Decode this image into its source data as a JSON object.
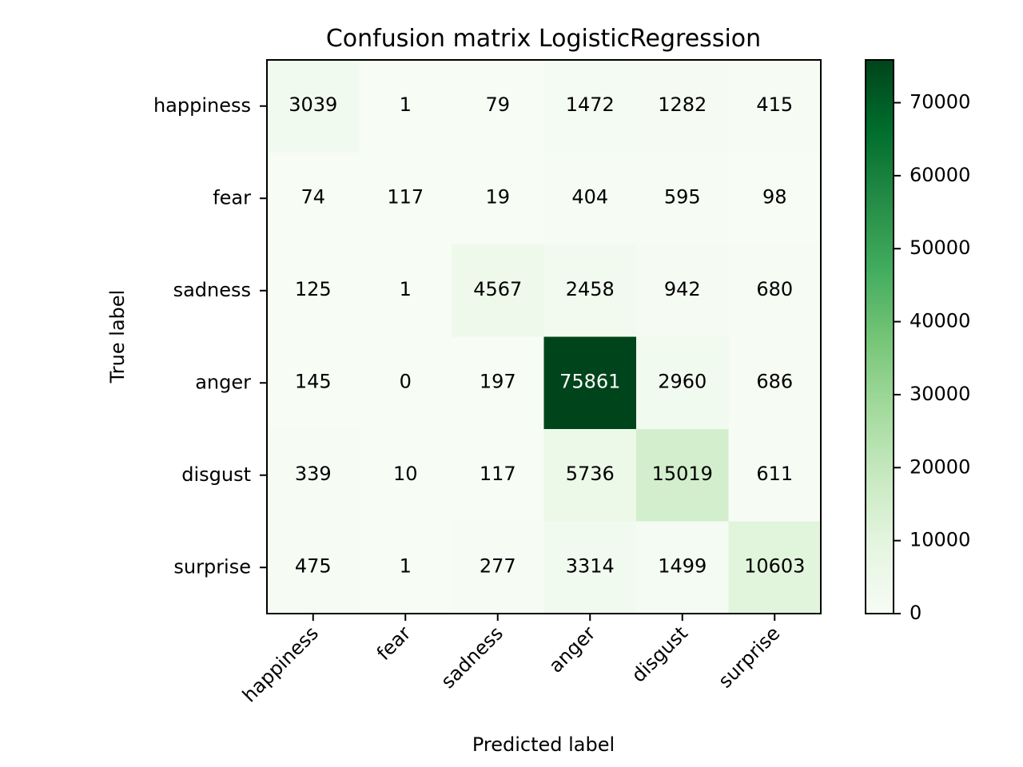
{
  "chart_data": {
    "type": "heatmap",
    "title": "Confusion matrix LogisticRegression",
    "xlabel": "Predicted label",
    "ylabel": "True label",
    "x_categories": [
      "happiness",
      "fear",
      "sadness",
      "anger",
      "disgust",
      "surprise"
    ],
    "y_categories": [
      "happiness",
      "fear",
      "sadness",
      "anger",
      "disgust",
      "surprise"
    ],
    "values": [
      [
        3039,
        1,
        79,
        1472,
        1282,
        415
      ],
      [
        74,
        117,
        19,
        404,
        595,
        98
      ],
      [
        125,
        1,
        4567,
        2458,
        942,
        680
      ],
      [
        145,
        0,
        197,
        75861,
        2960,
        686
      ],
      [
        339,
        10,
        117,
        5736,
        15019,
        611
      ],
      [
        475,
        1,
        277,
        3314,
        1499,
        10603
      ]
    ],
    "colormap": "Greens",
    "color_low": "#f7fcf5",
    "color_high": "#00441b",
    "colorbar": {
      "min": 0,
      "max": 75861,
      "ticks": [
        0,
        10000,
        20000,
        30000,
        40000,
        50000,
        60000,
        70000
      ]
    },
    "grid": false
  }
}
